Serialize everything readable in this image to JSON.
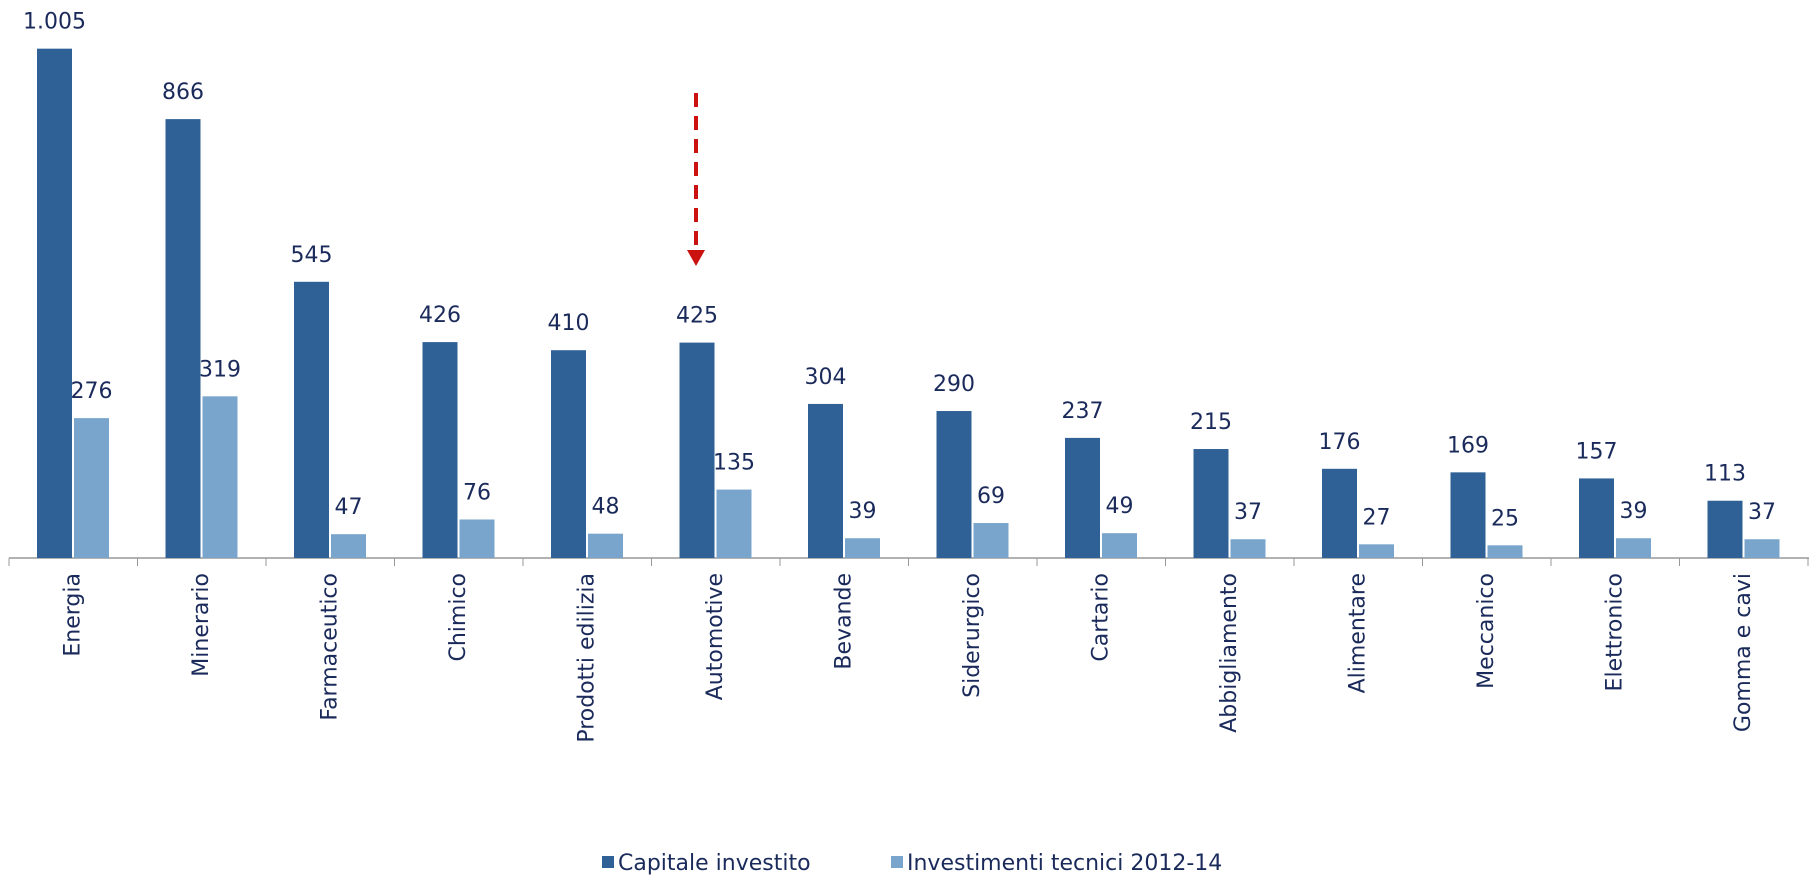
{
  "chart_data": {
    "type": "bar",
    "categories": [
      "Energia",
      "Minerario",
      "Farmaceutico",
      "Chimico",
      "Prodotti edilizia",
      "Automotive",
      "Bevande",
      "Siderurgico",
      "Cartario",
      "Abbigliamento",
      "Alimentare",
      "Meccanico",
      "Elettronico",
      "Gomma e cavi"
    ],
    "series": [
      {
        "name": "Capitale investito",
        "color": "#2f6096",
        "values": [
          1005,
          866,
          545,
          426,
          410,
          425,
          304,
          290,
          237,
          215,
          176,
          169,
          157,
          113
        ],
        "value_labels": [
          "1.005",
          "866",
          "545",
          "426",
          "410",
          "425",
          "304",
          "290",
          "237",
          "215",
          "176",
          "169",
          "157",
          "113"
        ]
      },
      {
        "name": "Investimenti tecnici 2012-14",
        "color": "#79a5cc",
        "values": [
          276,
          319,
          47,
          76,
          48,
          135,
          39,
          69,
          49,
          37,
          27,
          25,
          39,
          37
        ]
      }
    ],
    "legend": "bottom"
  }
}
